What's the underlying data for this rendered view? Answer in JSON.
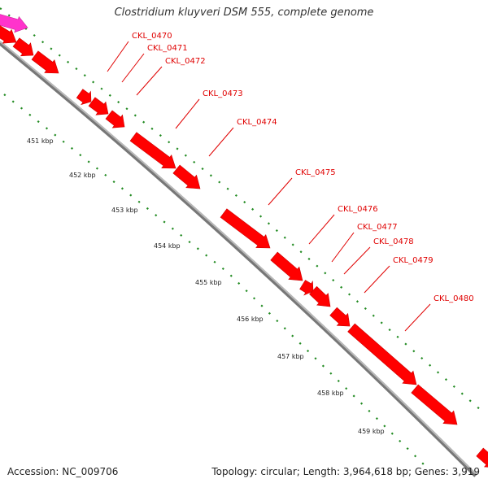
{
  "title": "Clostridium kluyveri DSM 555, complete genome",
  "footer": {
    "accession": "Accession: NC_009706",
    "summary": "Topology: circular; Length: 3,964,618 bp; Genes: 3,919"
  },
  "genes": [
    {
      "label": "CKL_0470"
    },
    {
      "label": "CKL_0471"
    },
    {
      "label": "CKL_0472"
    },
    {
      "label": "CKL_0473"
    },
    {
      "label": "CKL_0474"
    },
    {
      "label": "CKL_0475"
    },
    {
      "label": "CKL_0476"
    },
    {
      "label": "CKL_0477"
    },
    {
      "label": "CKL_0478"
    },
    {
      "label": "CKL_0479"
    },
    {
      "label": "CKL_0480"
    }
  ],
  "ticks": [
    "451 kbp",
    "452 kbp",
    "453 kbp",
    "454 kbp",
    "455 kbp",
    "456 kbp",
    "457 kbp",
    "458 kbp",
    "459 kbp"
  ],
  "colors": {
    "gene": "#ff0000",
    "gene_edge": "#cc0000",
    "other_feature": "#ff33cc",
    "backbone": "#999999",
    "dots": "#228b22",
    "label": "#e00000"
  }
}
